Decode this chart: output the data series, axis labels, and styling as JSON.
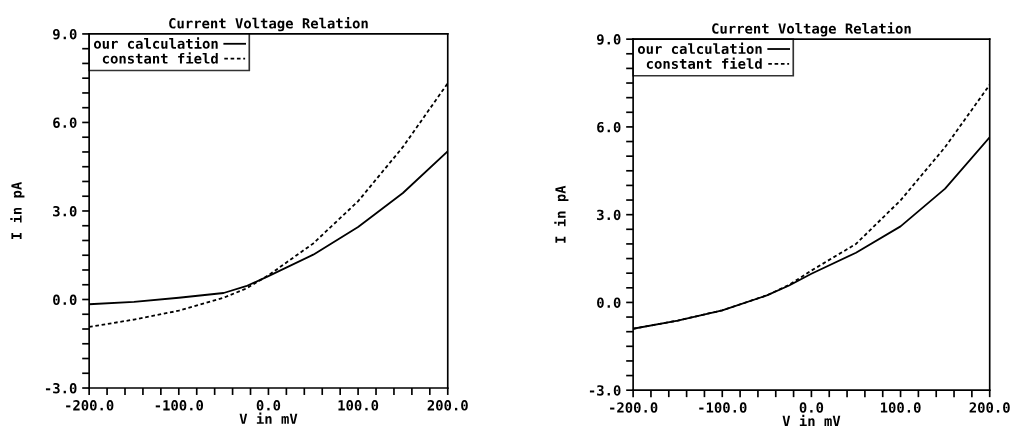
{
  "chart_data": [
    {
      "type": "line",
      "title": "Current Voltage Relation",
      "xlabel": "V in mV",
      "ylabel": "I in pA",
      "legend": "top left",
      "marker": "none",
      "grid": false,
      "x": [
        -200,
        -150,
        -100,
        -50,
        -25,
        0,
        50,
        100,
        150,
        200
      ],
      "series": [
        {
          "name": "our calculation",
          "color": "#000000",
          "line_style": "solid",
          "values": [
            -0.16,
            -0.08,
            0.06,
            0.22,
            0.45,
            0.79,
            1.52,
            2.46,
            3.61,
            5.02
          ]
        },
        {
          "name": "constant field",
          "color": "#000000",
          "line_style": "dotted",
          "values": [
            -0.93,
            -0.68,
            -0.38,
            0.06,
            0.37,
            0.82,
            1.9,
            3.33,
            5.17,
            7.33
          ]
        }
      ],
      "xlim": [
        -200,
        200
      ],
      "ylim": [
        -3,
        9
      ],
      "xticks": [
        {
          "value": -200,
          "label": "-200.0"
        },
        {
          "value": -180,
          "label": null
        },
        {
          "value": -160,
          "label": null
        },
        {
          "value": -140,
          "label": null
        },
        {
          "value": -120,
          "label": null
        },
        {
          "value": -100,
          "label": "-100.0"
        },
        {
          "value": -80,
          "label": null
        },
        {
          "value": -60,
          "label": null
        },
        {
          "value": -40,
          "label": null
        },
        {
          "value": -20,
          "label": null
        },
        {
          "value": 0,
          "label": "0.0"
        },
        {
          "value": 20,
          "label": null
        },
        {
          "value": 40,
          "label": null
        },
        {
          "value": 60,
          "label": null
        },
        {
          "value": 80,
          "label": null
        },
        {
          "value": 100,
          "label": "100.0"
        },
        {
          "value": 120,
          "label": null
        },
        {
          "value": 140,
          "label": null
        },
        {
          "value": 160,
          "label": null
        },
        {
          "value": 180,
          "label": null
        },
        {
          "value": 200,
          "label": "200.0"
        }
      ],
      "yticks": [
        {
          "value": -3,
          "label": "-3.0"
        },
        {
          "value": -2.5,
          "label": null
        },
        {
          "value": -2,
          "label": null
        },
        {
          "value": -1.5,
          "label": null
        },
        {
          "value": -1,
          "label": null
        },
        {
          "value": -0.5,
          "label": null
        },
        {
          "value": 0,
          "label": "0.0"
        },
        {
          "value": 0.5,
          "label": null
        },
        {
          "value": 1,
          "label": null
        },
        {
          "value": 1.5,
          "label": null
        },
        {
          "value": 2,
          "label": null
        },
        {
          "value": 2.5,
          "label": null
        },
        {
          "value": 3,
          "label": "3.0"
        },
        {
          "value": 3.5,
          "label": null
        },
        {
          "value": 4,
          "label": null
        },
        {
          "value": 4.5,
          "label": null
        },
        {
          "value": 5,
          "label": null
        },
        {
          "value": 5.5,
          "label": null
        },
        {
          "value": 6,
          "label": "6.0"
        },
        {
          "value": 6.5,
          "label": null
        },
        {
          "value": 7,
          "label": null
        },
        {
          "value": 7.5,
          "label": null
        },
        {
          "value": 8,
          "label": null
        },
        {
          "value": 8.5,
          "label": null
        },
        {
          "value": 9,
          "label": "9.0"
        }
      ]
    },
    {
      "type": "line",
      "title": "Current Voltage Relation",
      "xlabel": "V in mV",
      "ylabel": "I in pA",
      "legend": "top left",
      "marker": "none",
      "grid": false,
      "x": [
        -200,
        -150,
        -100,
        -50,
        -25,
        0,
        50,
        100,
        150,
        200
      ],
      "series": [
        {
          "name": "our calculation",
          "color": "#000000",
          "line_style": "solid",
          "values": [
            -0.9,
            -0.62,
            -0.27,
            0.24,
            0.58,
            0.98,
            1.7,
            2.6,
            3.89,
            5.65
          ]
        },
        {
          "name": "constant field",
          "color": "#000000",
          "line_style": "dotted",
          "values": [
            -0.9,
            -0.62,
            -0.27,
            0.24,
            0.6,
            1.09,
            2.0,
            3.49,
            5.31,
            7.44
          ]
        }
      ],
      "xlim": [
        -200,
        200
      ],
      "ylim": [
        -3,
        9
      ],
      "xticks": [
        {
          "value": -200,
          "label": "-200.0"
        },
        {
          "value": -180,
          "label": null
        },
        {
          "value": -160,
          "label": null
        },
        {
          "value": -140,
          "label": null
        },
        {
          "value": -120,
          "label": null
        },
        {
          "value": -100,
          "label": "-100.0"
        },
        {
          "value": -80,
          "label": null
        },
        {
          "value": -60,
          "label": null
        },
        {
          "value": -40,
          "label": null
        },
        {
          "value": -20,
          "label": null
        },
        {
          "value": 0,
          "label": "0.0"
        },
        {
          "value": 20,
          "label": null
        },
        {
          "value": 40,
          "label": null
        },
        {
          "value": 60,
          "label": null
        },
        {
          "value": 80,
          "label": null
        },
        {
          "value": 100,
          "label": "100.0"
        },
        {
          "value": 120,
          "label": null
        },
        {
          "value": 140,
          "label": null
        },
        {
          "value": 160,
          "label": null
        },
        {
          "value": 180,
          "label": null
        },
        {
          "value": 200,
          "label": "200.0"
        }
      ],
      "yticks": [
        {
          "value": -3,
          "label": "-3.0"
        },
        {
          "value": -2.5,
          "label": null
        },
        {
          "value": -2,
          "label": null
        },
        {
          "value": -1.5,
          "label": null
        },
        {
          "value": -1,
          "label": null
        },
        {
          "value": -0.5,
          "label": null
        },
        {
          "value": 0,
          "label": "0.0"
        },
        {
          "value": 0.5,
          "label": null
        },
        {
          "value": 1,
          "label": null
        },
        {
          "value": 1.5,
          "label": null
        },
        {
          "value": 2,
          "label": null
        },
        {
          "value": 2.5,
          "label": null
        },
        {
          "value": 3,
          "label": "3.0"
        },
        {
          "value": 3.5,
          "label": null
        },
        {
          "value": 4,
          "label": null
        },
        {
          "value": 4.5,
          "label": null
        },
        {
          "value": 5,
          "label": null
        },
        {
          "value": 5.5,
          "label": null
        },
        {
          "value": 6,
          "label": "6.0"
        },
        {
          "value": 6.5,
          "label": null
        },
        {
          "value": 7,
          "label": null
        },
        {
          "value": 7.5,
          "label": null
        },
        {
          "value": 8,
          "label": null
        },
        {
          "value": 8.5,
          "label": null
        },
        {
          "value": 9,
          "label": "9.0"
        }
      ]
    }
  ]
}
